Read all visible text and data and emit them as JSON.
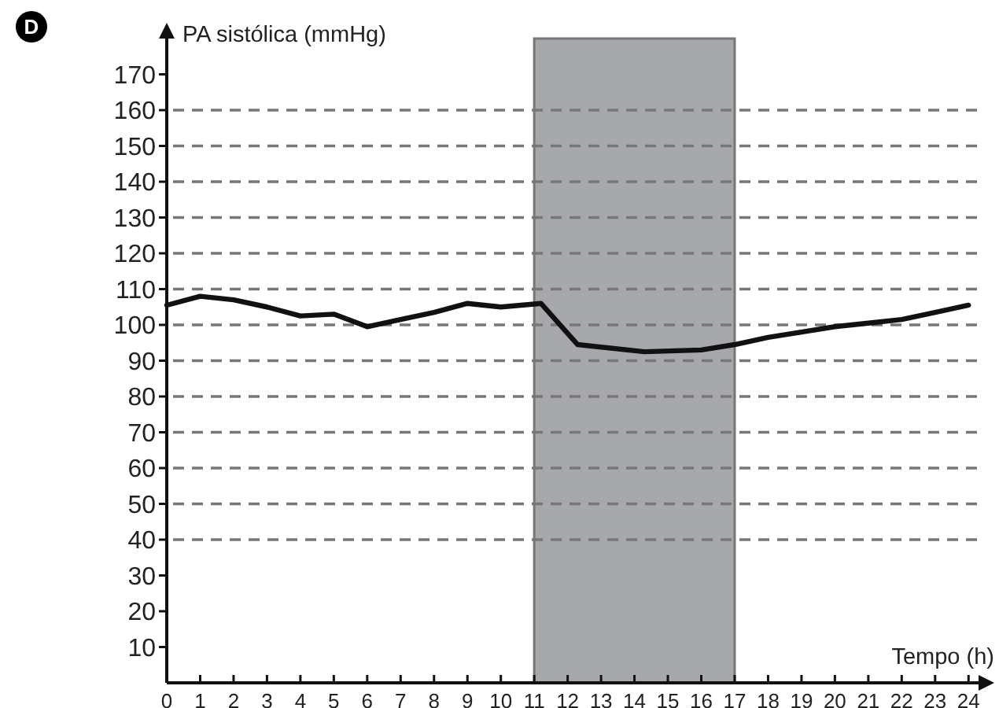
{
  "chart_data": {
    "type": "line",
    "xlabel": "Tempo (h)",
    "ylabel": "PA sistólica (mmHg)",
    "annotations": [
      "D"
    ],
    "x": [
      0,
      1,
      2,
      3,
      4,
      5,
      6,
      7,
      8,
      9,
      10,
      11.2,
      12.3,
      14.3,
      16,
      17,
      18,
      19,
      20,
      21,
      22,
      23,
      24
    ],
    "series": [
      {
        "color": "#111111",
        "values": [
          105.5,
          108,
          107,
          105,
          102.5,
          103,
          99.5,
          101.5,
          103.5,
          106,
          105,
          106,
          94.5,
          92.5,
          93,
          94.5,
          96.5,
          98,
          99.5,
          100.5,
          101.5,
          103.5,
          105.5
        ]
      }
    ],
    "xlim": [
      0,
      24.3
    ],
    "xticks": [
      0,
      1,
      2,
      3,
      4,
      5,
      6,
      7,
      8,
      9,
      10,
      11,
      12,
      13,
      14,
      15,
      16,
      17,
      18,
      19,
      20,
      21,
      22,
      23,
      24
    ],
    "ylim": [
      0,
      180
    ],
    "yticks": [
      10,
      20,
      30,
      40,
      50,
      60,
      70,
      80,
      90,
      100,
      110,
      120,
      130,
      140,
      150,
      160,
      170
    ],
    "bands": [
      {
        "axis": "x",
        "from": 11,
        "to": 17,
        "color": "#a7a8ab"
      }
    ],
    "ref_lines": [
      {
        "axis": "y",
        "value": 40,
        "color": "#777777",
        "line_style": "dashed"
      },
      {
        "axis": "y",
        "value": 50,
        "color": "#777777",
        "line_style": "dashed"
      },
      {
        "axis": "y",
        "value": 60,
        "color": "#777777",
        "line_style": "dashed"
      },
      {
        "axis": "y",
        "value": 70,
        "color": "#777777",
        "line_style": "dashed"
      },
      {
        "axis": "y",
        "value": 80,
        "color": "#777777",
        "line_style": "dashed"
      },
      {
        "axis": "y",
        "value": 90,
        "color": "#777777",
        "line_style": "dashed"
      },
      {
        "axis": "y",
        "value": 100,
        "color": "#777777",
        "line_style": "dashed"
      },
      {
        "axis": "y",
        "value": 110,
        "color": "#777777",
        "line_style": "dashed"
      },
      {
        "axis": "y",
        "value": 120,
        "color": "#777777",
        "line_style": "dashed"
      },
      {
        "axis": "y",
        "value": 130,
        "color": "#777777",
        "line_style": "dashed"
      },
      {
        "axis": "y",
        "value": 140,
        "color": "#777777",
        "line_style": "dashed"
      },
      {
        "axis": "y",
        "value": 150,
        "color": "#777777",
        "line_style": "dashed"
      },
      {
        "axis": "y",
        "value": 160,
        "color": "#777777",
        "line_style": "dashed"
      }
    ],
    "grid": false,
    "marker": "none",
    "line_style": "solid"
  }
}
